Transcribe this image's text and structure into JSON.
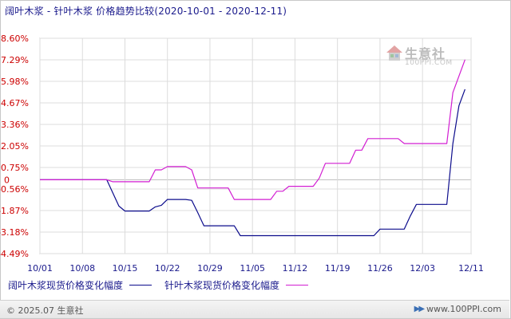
{
  "chart_data": {
    "type": "line",
    "title": "阔叶木浆 - 针叶木浆 价格趋势比较(2020-10-01 - 2020-12-11)",
    "y_ticks": [
      "8.60%",
      "7.29%",
      "5.98%",
      "4.67%",
      "3.36%",
      "2.05%",
      "0.75%",
      "-0.56%",
      "-1.87%",
      "-3.18%",
      "-4.49%"
    ],
    "y_zero_label": "0",
    "ylim": [
      -4.49,
      8.6
    ],
    "x_ticks": [
      "10/01",
      "10/08",
      "10/15",
      "10/22",
      "10/29",
      "11/05",
      "11/12",
      "11/19",
      "11/26",
      "12/03",
      "12/11"
    ],
    "x_tick_days": [
      0,
      7,
      14,
      21,
      28,
      35,
      42,
      49,
      56,
      63,
      71
    ],
    "xlim": [
      0,
      71
    ],
    "grid": true,
    "legend_position": "bottom",
    "series": [
      {
        "name": "阔叶木浆现货价格变化幅度",
        "color": "#0c0c8c",
        "points": [
          [
            0,
            0
          ],
          [
            11,
            0
          ],
          [
            12,
            -0.8
          ],
          [
            13,
            -1.6
          ],
          [
            14,
            -1.9
          ],
          [
            15,
            -1.9
          ],
          [
            16,
            -1.9
          ],
          [
            17,
            -1.9
          ],
          [
            18,
            -1.9
          ],
          [
            19,
            -1.65
          ],
          [
            20,
            -1.55
          ],
          [
            21,
            -1.2
          ],
          [
            22,
            -1.2
          ],
          [
            23,
            -1.2
          ],
          [
            24,
            -1.2
          ],
          [
            25,
            -1.25
          ],
          [
            26,
            -2.0
          ],
          [
            27,
            -2.8
          ],
          [
            28,
            -2.8
          ],
          [
            29,
            -2.8
          ],
          [
            30,
            -2.8
          ],
          [
            31,
            -2.8
          ],
          [
            32,
            -2.8
          ],
          [
            33,
            -3.4
          ],
          [
            34,
            -3.4
          ],
          [
            35,
            -3.4
          ],
          [
            41,
            -3.4
          ],
          [
            48,
            -3.4
          ],
          [
            55,
            -3.4
          ],
          [
            56,
            -3.0
          ],
          [
            57,
            -3.0
          ],
          [
            58,
            -3.0
          ],
          [
            59,
            -3.0
          ],
          [
            60,
            -3.0
          ],
          [
            61,
            -2.2
          ],
          [
            62,
            -1.5
          ],
          [
            63,
            -1.5
          ],
          [
            64,
            -1.5
          ],
          [
            65,
            -1.5
          ],
          [
            66,
            -1.5
          ],
          [
            67,
            -1.5
          ],
          [
            68,
            2.2
          ],
          [
            69,
            4.5
          ],
          [
            70,
            5.5
          ]
        ]
      },
      {
        "name": "针叶木浆现货价格变化幅度",
        "color": "#d21ed2",
        "points": [
          [
            0,
            0
          ],
          [
            11,
            0
          ],
          [
            12,
            -0.12
          ],
          [
            13,
            -0.12
          ],
          [
            14,
            -0.12
          ],
          [
            15,
            -0.12
          ],
          [
            16,
            -0.12
          ],
          [
            17,
            -0.12
          ],
          [
            18,
            -0.12
          ],
          [
            19,
            0.6
          ],
          [
            20,
            0.6
          ],
          [
            21,
            0.8
          ],
          [
            22,
            0.8
          ],
          [
            23,
            0.8
          ],
          [
            24,
            0.8
          ],
          [
            25,
            0.6
          ],
          [
            26,
            -0.5
          ],
          [
            27,
            -0.5
          ],
          [
            28,
            -0.5
          ],
          [
            29,
            -0.5
          ],
          [
            30,
            -0.5
          ],
          [
            31,
            -0.5
          ],
          [
            32,
            -1.2
          ],
          [
            33,
            -1.2
          ],
          [
            34,
            -1.2
          ],
          [
            35,
            -1.2
          ],
          [
            36,
            -1.2
          ],
          [
            37,
            -1.2
          ],
          [
            38,
            -1.2
          ],
          [
            39,
            -0.7
          ],
          [
            40,
            -0.7
          ],
          [
            41,
            -0.4
          ],
          [
            42,
            -0.4
          ],
          [
            43,
            -0.4
          ],
          [
            44,
            -0.4
          ],
          [
            45,
            -0.4
          ],
          [
            46,
            0.1
          ],
          [
            47,
            1.0
          ],
          [
            48,
            1.0
          ],
          [
            49,
            1.0
          ],
          [
            50,
            1.0
          ],
          [
            51,
            1.0
          ],
          [
            52,
            1.8
          ],
          [
            53,
            1.8
          ],
          [
            54,
            2.5
          ],
          [
            55,
            2.5
          ],
          [
            56,
            2.5
          ],
          [
            57,
            2.5
          ],
          [
            58,
            2.5
          ],
          [
            59,
            2.5
          ],
          [
            60,
            2.2
          ],
          [
            61,
            2.2
          ],
          [
            62,
            2.2
          ],
          [
            63,
            2.2
          ],
          [
            64,
            2.2
          ],
          [
            65,
            2.2
          ],
          [
            66,
            2.2
          ],
          [
            67,
            2.2
          ],
          [
            68,
            5.3
          ],
          [
            69,
            6.3
          ],
          [
            70,
            7.3
          ]
        ]
      }
    ]
  },
  "watermark": {
    "name": "生意社",
    "sub": "100PPI.COM"
  },
  "footer": {
    "copyright": "© 2025.07 生意社",
    "site": "www.100PPI.com"
  }
}
